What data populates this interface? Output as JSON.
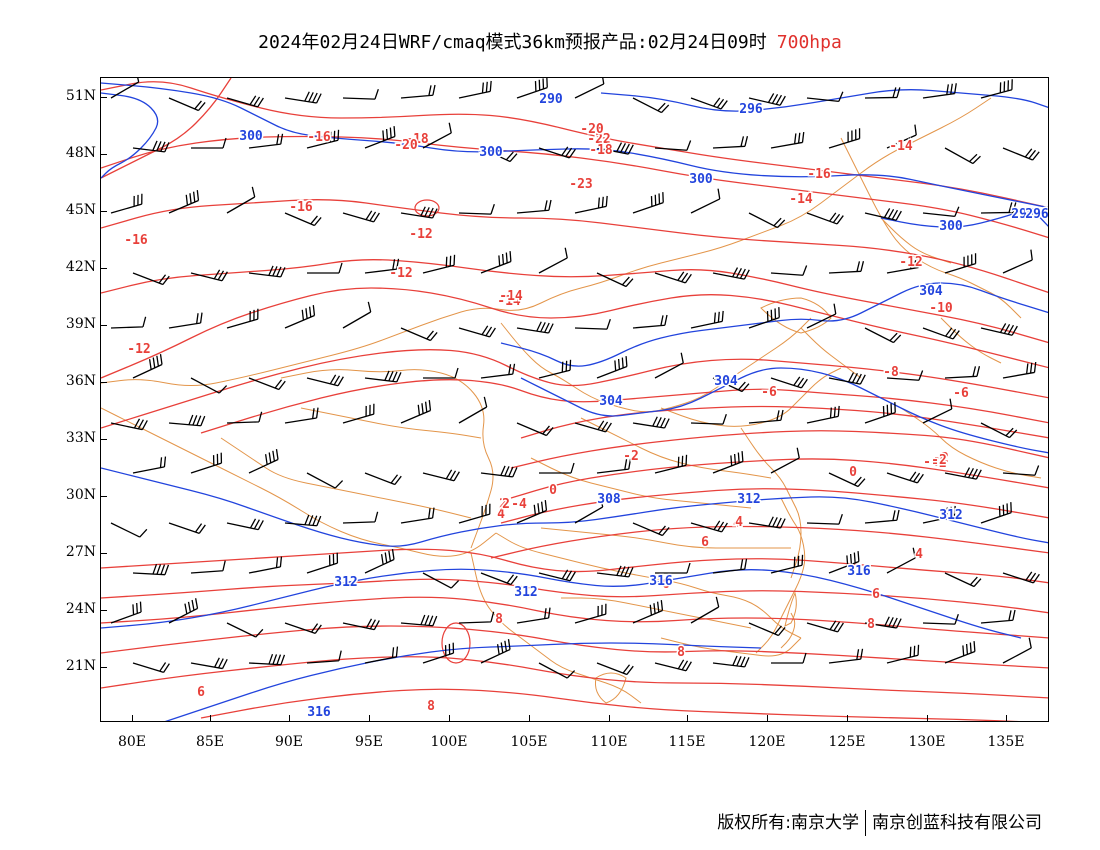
{
  "title": {
    "text": "2024年02月24日WRF/cmaq模式36km预报产品:02月24日09时",
    "level": "700hpa",
    "level_color": "#e0312d"
  },
  "axes": {
    "lat_labels": [
      "51N",
      "48N",
      "45N",
      "42N",
      "39N",
      "36N",
      "33N",
      "30N",
      "27N",
      "24N",
      "21N"
    ],
    "lon_labels": [
      "80E",
      "85E",
      "90E",
      "95E",
      "100E",
      "105E",
      "110E",
      "115E",
      "120E",
      "125E",
      "130E",
      "135E"
    ]
  },
  "colors": {
    "temperature": "#e8403a",
    "geopotential": "#2244dd",
    "boundary": "#e3954a",
    "wind": "#000000"
  },
  "contour_labels": {
    "temperature": [
      "-16",
      "-18",
      "-20",
      "-23",
      "-22",
      "-20",
      "-18",
      "-16",
      "-14",
      "-16",
      "-14",
      "-16",
      "-12",
      "-14",
      "-12",
      "-14",
      "-12",
      "-10",
      "-12",
      "-8",
      "-6",
      "-6",
      "-4",
      "-4",
      "-2",
      "-2",
      "-2",
      "0",
      "0",
      "2",
      "4",
      "2",
      "4",
      "4",
      "6",
      "8",
      "6",
      "6",
      "8",
      "8",
      "6",
      "8",
      "-2",
      "4"
    ],
    "geopotential": [
      "300",
      "300",
      "300",
      "296",
      "290",
      "296",
      "300",
      "304",
      "304",
      "304",
      "308",
      "312",
      "312",
      "316",
      "312",
      "316",
      "312",
      "316",
      "296"
    ]
  },
  "footer": {
    "left": "版权所有:南京大学",
    "right": "南京创蓝科技有限公司"
  }
}
